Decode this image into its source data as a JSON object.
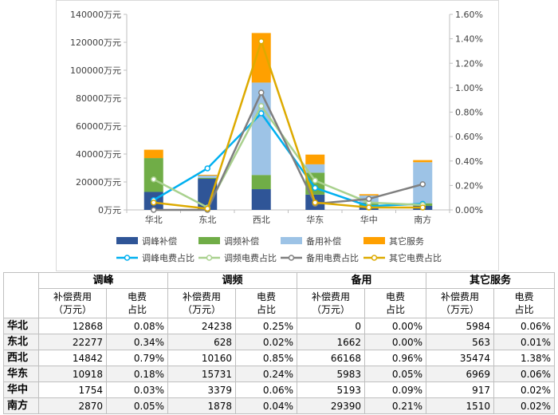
{
  "chart_data": {
    "type": "bar",
    "stacked": true,
    "categories": [
      "华北",
      "东北",
      "西北",
      "华东",
      "华中",
      "南方"
    ],
    "series": [
      {
        "name": "调峰补偿",
        "color": "#2f5597",
        "values": [
          12868,
          22277,
          14842,
          10918,
          1754,
          2870
        ]
      },
      {
        "name": "调频补偿",
        "color": "#70ad47",
        "values": [
          24238,
          628,
          10160,
          15731,
          3379,
          1878
        ]
      },
      {
        "name": "备用补偿",
        "color": "#9dc3e6",
        "values": [
          0,
          1662,
          66168,
          5983,
          5193,
          29390
        ]
      },
      {
        "name": "其它服务",
        "color": "#ffa000",
        "values": [
          5984,
          563,
          35474,
          6969,
          917,
          1510
        ]
      }
    ],
    "line_series": [
      {
        "name": "调峰电费占比",
        "color": "#00b0f0",
        "values": [
          0.08,
          0.34,
          0.79,
          0.18,
          0.03,
          0.05
        ]
      },
      {
        "name": "调频电费占比",
        "color": "#a9d18e",
        "values": [
          0.25,
          0.02,
          0.85,
          0.24,
          0.06,
          0.04
        ]
      },
      {
        "name": "备用电费占比",
        "color": "#7f7f7f",
        "values": [
          0.0,
          0.0,
          0.96,
          0.05,
          0.09,
          0.21
        ]
      },
      {
        "name": "其它电费占比",
        "color": "#ddaa00",
        "values": [
          0.06,
          0.01,
          1.38,
          0.06,
          0.02,
          0.02
        ]
      }
    ],
    "ylim": [
      0,
      140000
    ],
    "y_ticks": [
      "0万元",
      "20000万元",
      "40000万元",
      "60000万元",
      "80000万元",
      "100000万元",
      "120000万元",
      "140000万元"
    ],
    "y2lim": [
      0,
      1.6
    ],
    "y2_ticks": [
      "0.00%",
      "0.20%",
      "0.40%",
      "0.60%",
      "0.80%",
      "1.00%",
      "1.20%",
      "1.40%",
      "1.60%"
    ],
    "grid": false,
    "legend_position": "bottom"
  },
  "table": {
    "groups": [
      "调峰",
      "调频",
      "备用",
      "其它服务"
    ],
    "sub_cost": "补偿费用\n（万元）",
    "sub_pct": "电费\n占比",
    "rows": [
      {
        "region": "华北",
        "cells": [
          "12868",
          "0.08%",
          "24238",
          "0.25%",
          "0",
          "0.00%",
          "5984",
          "0.06%"
        ]
      },
      {
        "region": "东北",
        "cells": [
          "22277",
          "0.34%",
          "628",
          "0.02%",
          "1662",
          "0.00%",
          "563",
          "0.01%"
        ]
      },
      {
        "region": "西北",
        "cells": [
          "14842",
          "0.79%",
          "10160",
          "0.85%",
          "66168",
          "0.96%",
          "35474",
          "1.38%"
        ]
      },
      {
        "region": "华东",
        "cells": [
          "10918",
          "0.18%",
          "15731",
          "0.24%",
          "5983",
          "0.05%",
          "6969",
          "0.06%"
        ]
      },
      {
        "region": "华中",
        "cells": [
          "1754",
          "0.03%",
          "3379",
          "0.06%",
          "5193",
          "0.09%",
          "917",
          "0.02%"
        ]
      },
      {
        "region": "南方",
        "cells": [
          "2870",
          "0.05%",
          "1878",
          "0.04%",
          "29390",
          "0.21%",
          "1510",
          "0.02%"
        ]
      }
    ]
  }
}
